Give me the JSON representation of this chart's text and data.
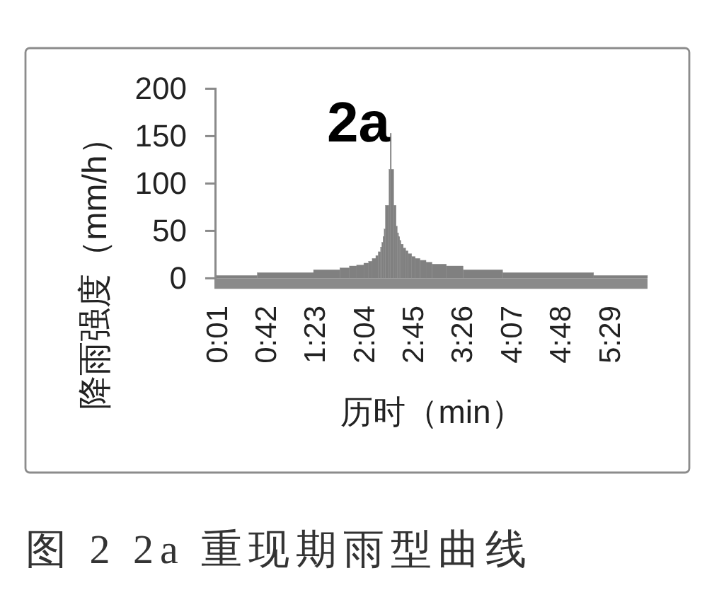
{
  "chart_data": {
    "type": "histogram",
    "title": "2a",
    "xlabel": "历时（min）",
    "ylabel": "降雨强度（mm/h）",
    "annotations": [
      "图 2 2a 重现期雨型曲线"
    ],
    "color": "#808080",
    "bins": [
      0,
      34,
      81,
      103,
      111,
      117,
      123,
      127,
      130,
      133,
      135,
      137,
      138,
      139,
      140,
      141,
      144,
      145,
      146,
      148,
      150,
      151,
      152,
      153,
      154,
      156,
      158,
      160,
      163,
      166,
      170,
      175,
      180,
      192,
      206,
      239,
      315,
      360
    ],
    "values": [
      3,
      6,
      9,
      11,
      13,
      14,
      16,
      18,
      21,
      24,
      28,
      33,
      38,
      44,
      52,
      77,
      115,
      153,
      115,
      77,
      55,
      48,
      44,
      40,
      36,
      32,
      29,
      26,
      23,
      21,
      19,
      17,
      15,
      13,
      9,
      6,
      3
    ],
    "xlim": [
      0,
      360
    ],
    "xticks": [
      {
        "value": 1,
        "label": "0:01"
      },
      {
        "value": 42,
        "label": "0:42"
      },
      {
        "value": 83,
        "label": "1:23"
      },
      {
        "value": 124,
        "label": "2:04"
      },
      {
        "value": 165,
        "label": "2:45"
      },
      {
        "value": 206,
        "label": "3:26"
      },
      {
        "value": 247,
        "label": "4:07"
      },
      {
        "value": 288,
        "label": "4:48"
      },
      {
        "value": 329,
        "label": "5:29"
      }
    ],
    "ylim": [
      0,
      200
    ],
    "yticks": [
      0,
      50,
      100,
      150,
      200
    ]
  }
}
